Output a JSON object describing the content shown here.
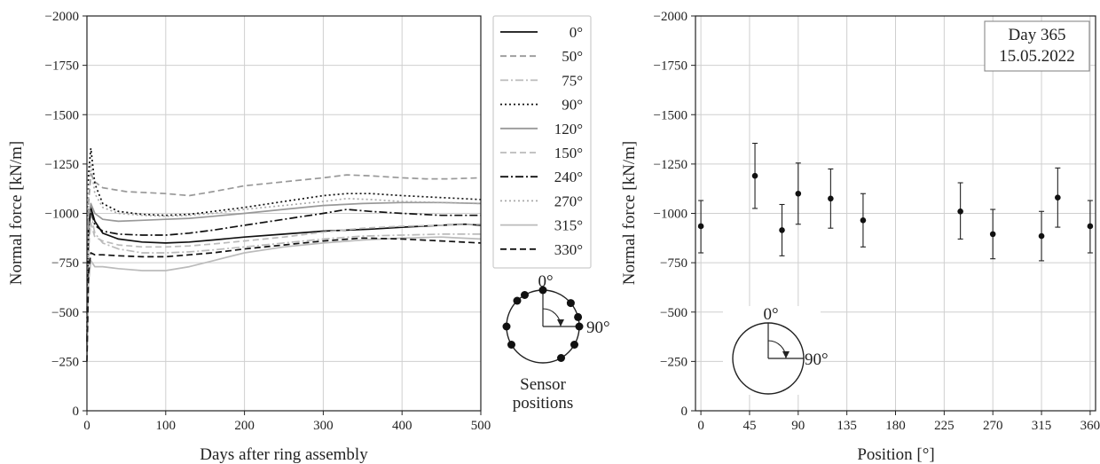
{
  "chart_data": [
    {
      "type": "line",
      "xlabel": "Days after ring assembly",
      "ylabel": "Normal force [kN/m]",
      "xlim": [
        0,
        500
      ],
      "ylim": [
        0,
        -2000
      ],
      "y_inverted": true,
      "xticks": [
        "0",
        "100",
        "200",
        "300",
        "400",
        "500"
      ],
      "yticks": [
        "0",
        "−250",
        "−500",
        "−750",
        "−1000",
        "−1250",
        "−1500",
        "−1750",
        "−2000"
      ],
      "grid": true,
      "legend_position": "outside-right",
      "series": [
        {
          "name": "0°",
          "style": "solid-black",
          "color": "#111111",
          "points": [
            [
              0,
              -300
            ],
            [
              2,
              -900
            ],
            [
              5,
              -1030
            ],
            [
              10,
              -960
            ],
            [
              20,
              -900
            ],
            [
              40,
              -870
            ],
            [
              70,
              -855
            ],
            [
              100,
              -850
            ],
            [
              130,
              -855
            ],
            [
              160,
              -865
            ],
            [
              200,
              -880
            ],
            [
              250,
              -895
            ],
            [
              300,
              -910
            ],
            [
              330,
              -915
            ],
            [
              360,
              -920
            ],
            [
              400,
              -930
            ],
            [
              450,
              -940
            ],
            [
              480,
              -945
            ],
            [
              500,
              -940
            ]
          ]
        },
        {
          "name": "50°",
          "style": "dashed-gray",
          "color": "#999999",
          "points": [
            [
              0,
              -500
            ],
            [
              2,
              -1050
            ],
            [
              5,
              -1200
            ],
            [
              10,
              -1160
            ],
            [
              20,
              -1130
            ],
            [
              50,
              -1110
            ],
            [
              100,
              -1100
            ],
            [
              130,
              -1090
            ],
            [
              160,
              -1110
            ],
            [
              200,
              -1140
            ],
            [
              250,
              -1160
            ],
            [
              300,
              -1180
            ],
            [
              330,
              -1195
            ],
            [
              360,
              -1190
            ],
            [
              400,
              -1180
            ],
            [
              430,
              -1175
            ],
            [
              460,
              -1175
            ],
            [
              500,
              -1180
            ]
          ]
        },
        {
          "name": "75°",
          "style": "dashdot-lightgray",
          "color": "#bbbbbb",
          "points": [
            [
              0,
              -300
            ],
            [
              2,
              -850
            ],
            [
              5,
              -1000
            ],
            [
              10,
              -900
            ],
            [
              20,
              -850
            ],
            [
              40,
              -820
            ],
            [
              70,
              -800
            ],
            [
              100,
              -800
            ],
            [
              130,
              -805
            ],
            [
              160,
              -815
            ],
            [
              200,
              -830
            ],
            [
              250,
              -850
            ],
            [
              300,
              -870
            ],
            [
              350,
              -885
            ],
            [
              400,
              -890
            ],
            [
              450,
              -895
            ],
            [
              500,
              -895
            ]
          ]
        },
        {
          "name": "90°",
          "style": "dotted-black",
          "color": "#111111",
          "points": [
            [
              0,
              -400
            ],
            [
              2,
              -1200
            ],
            [
              5,
              -1330
            ],
            [
              10,
              -1150
            ],
            [
              20,
              -1050
            ],
            [
              40,
              -1010
            ],
            [
              70,
              -995
            ],
            [
              100,
              -990
            ],
            [
              130,
              -995
            ],
            [
              160,
              -1010
            ],
            [
              200,
              -1030
            ],
            [
              250,
              -1060
            ],
            [
              300,
              -1090
            ],
            [
              330,
              -1100
            ],
            [
              360,
              -1100
            ],
            [
              400,
              -1090
            ],
            [
              450,
              -1080
            ],
            [
              500,
              -1070
            ]
          ]
        },
        {
          "name": "120°",
          "style": "solid-gray",
          "color": "#999999",
          "points": [
            [
              0,
              -350
            ],
            [
              2,
              -950
            ],
            [
              5,
              -1050
            ],
            [
              10,
              -1000
            ],
            [
              20,
              -970
            ],
            [
              40,
              -960
            ],
            [
              70,
              -965
            ],
            [
              100,
              -970
            ],
            [
              130,
              -975
            ],
            [
              160,
              -985
            ],
            [
              200,
              -1000
            ],
            [
              250,
              -1020
            ],
            [
              300,
              -1040
            ],
            [
              350,
              -1050
            ],
            [
              400,
              -1055
            ],
            [
              450,
              -1055
            ],
            [
              500,
              -1050
            ]
          ]
        },
        {
          "name": "150°",
          "style": "dashed-lightgray",
          "color": "#bbbbbb",
          "points": [
            [
              0,
              -300
            ],
            [
              2,
              -820
            ],
            [
              5,
              -950
            ],
            [
              10,
              -880
            ],
            [
              20,
              -860
            ],
            [
              40,
              -840
            ],
            [
              70,
              -830
            ],
            [
              100,
              -830
            ],
            [
              130,
              -835
            ],
            [
              160,
              -845
            ],
            [
              200,
              -860
            ],
            [
              250,
              -880
            ],
            [
              300,
              -905
            ],
            [
              350,
              -925
            ],
            [
              400,
              -935
            ],
            [
              450,
              -940
            ],
            [
              500,
              -945
            ]
          ]
        },
        {
          "name": "240°",
          "style": "dashdot-black",
          "color": "#111111",
          "points": [
            [
              0,
              -350
            ],
            [
              2,
              -920
            ],
            [
              5,
              -1020
            ],
            [
              10,
              -940
            ],
            [
              20,
              -910
            ],
            [
              40,
              -895
            ],
            [
              70,
              -890
            ],
            [
              100,
              -890
            ],
            [
              130,
              -900
            ],
            [
              160,
              -915
            ],
            [
              200,
              -940
            ],
            [
              250,
              -970
            ],
            [
              300,
              -1000
            ],
            [
              330,
              -1020
            ],
            [
              360,
              -1010
            ],
            [
              400,
              -1000
            ],
            [
              450,
              -990
            ],
            [
              500,
              -990
            ]
          ]
        },
        {
          "name": "270°",
          "style": "dotted-gray",
          "color": "#aaaaaa",
          "points": [
            [
              0,
              -400
            ],
            [
              2,
              -1100
            ],
            [
              5,
              -1250
            ],
            [
              10,
              -1100
            ],
            [
              20,
              -1030
            ],
            [
              40,
              -1000
            ],
            [
              70,
              -990
            ],
            [
              100,
              -985
            ],
            [
              130,
              -990
            ],
            [
              160,
              -1000
            ],
            [
              200,
              -1020
            ],
            [
              250,
              -1040
            ],
            [
              300,
              -1060
            ],
            [
              330,
              -1075
            ],
            [
              360,
              -1070
            ],
            [
              400,
              -1060
            ],
            [
              450,
              -1055
            ],
            [
              500,
              -1050
            ]
          ]
        },
        {
          "name": "315°",
          "style": "solid-lightgray",
          "color": "#bbbbbb",
          "points": [
            [
              0,
              -250
            ],
            [
              2,
              -650
            ],
            [
              5,
              -760
            ],
            [
              10,
              -730
            ],
            [
              20,
              -730
            ],
            [
              40,
              -720
            ],
            [
              70,
              -710
            ],
            [
              100,
              -710
            ],
            [
              130,
              -730
            ],
            [
              160,
              -760
            ],
            [
              200,
              -800
            ],
            [
              250,
              -830
            ],
            [
              300,
              -850
            ],
            [
              350,
              -865
            ],
            [
              400,
              -875
            ],
            [
              450,
              -880
            ],
            [
              500,
              -870
            ]
          ]
        },
        {
          "name": "330°",
          "style": "dashed-black",
          "color": "#111111",
          "points": [
            [
              0,
              -250
            ],
            [
              2,
              -700
            ],
            [
              5,
              -800
            ],
            [
              10,
              -790
            ],
            [
              20,
              -790
            ],
            [
              40,
              -785
            ],
            [
              70,
              -780
            ],
            [
              100,
              -780
            ],
            [
              130,
              -790
            ],
            [
              160,
              -800
            ],
            [
              200,
              -820
            ],
            [
              250,
              -840
            ],
            [
              300,
              -860
            ],
            [
              350,
              -875
            ],
            [
              400,
              -870
            ],
            [
              450,
              -860
            ],
            [
              500,
              -850
            ]
          ]
        }
      ]
    },
    {
      "type": "scatter",
      "xlabel": "Position [°]",
      "ylabel": "Normal force [kN/m]",
      "xlim": [
        -5,
        365
      ],
      "ylim": [
        0,
        -2000
      ],
      "y_inverted": true,
      "xticks": [
        "0",
        "45",
        "90",
        "135",
        "180",
        "225",
        "270",
        "315",
        "360"
      ],
      "yticks": [
        "0",
        "−250",
        "−500",
        "−750",
        "−1000",
        "−1250",
        "−1500",
        "−1750",
        "−2000"
      ],
      "grid": true,
      "error_bars": true,
      "points": [
        {
          "x": 0,
          "y": -935,
          "err_low": -800,
          "err_high": -1065
        },
        {
          "x": 50,
          "y": -1190,
          "err_low": -1025,
          "err_high": -1355
        },
        {
          "x": 75,
          "y": -915,
          "err_low": -785,
          "err_high": -1045
        },
        {
          "x": 90,
          "y": -1100,
          "err_low": -945,
          "err_high": -1255
        },
        {
          "x": 120,
          "y": -1075,
          "err_low": -925,
          "err_high": -1225
        },
        {
          "x": 150,
          "y": -965,
          "err_low": -830,
          "err_high": -1100
        },
        {
          "x": 240,
          "y": -1010,
          "err_low": -870,
          "err_high": -1155
        },
        {
          "x": 270,
          "y": -895,
          "err_low": -770,
          "err_high": -1020
        },
        {
          "x": 315,
          "y": -885,
          "err_low": -760,
          "err_high": -1010
        },
        {
          "x": 330,
          "y": -1080,
          "err_low": -930,
          "err_high": -1230
        },
        {
          "x": 360,
          "y": -935,
          "err_low": -800,
          "err_high": -1065
        }
      ],
      "annotation_box": {
        "line1": "Day 365",
        "line2": "15.05.2022"
      }
    }
  ],
  "sensor_diagram": {
    "label_top": "0°",
    "label_right": "90°",
    "caption_line1": "Sensor",
    "caption_line2": "positions",
    "sensor_angles_deg": [
      0,
      50,
      75,
      90,
      120,
      150,
      240,
      270,
      315,
      330
    ]
  },
  "inset_diagram": {
    "label_top": "0°",
    "label_right": "90°"
  }
}
